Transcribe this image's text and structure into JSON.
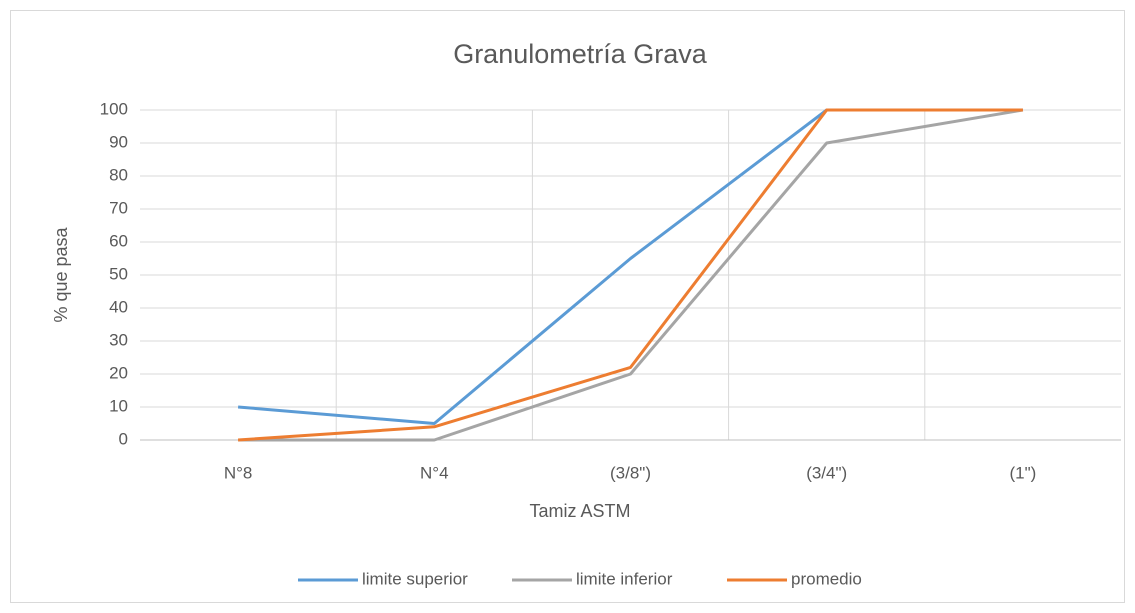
{
  "chart_data": {
    "type": "line",
    "title": "Granulometría  Grava",
    "x_label": "Tamiz ASTM",
    "y_label": "% que pasa",
    "categories": [
      "N°8",
      "N°4",
      "(3/8\")",
      "(3/4\")",
      "(1\")"
    ],
    "series": [
      {
        "name": "limite superior",
        "color": "#5b9bd5",
        "values": [
          10,
          5,
          55,
          100,
          100
        ]
      },
      {
        "name": "limite inferior",
        "color": "#a5a5a5",
        "values": [
          0,
          0,
          20,
          90,
          100
        ]
      },
      {
        "name": "promedio",
        "color": "#ed7d31",
        "values": [
          0,
          4,
          22,
          100,
          100
        ]
      }
    ],
    "ylim": [
      0,
      100
    ],
    "yticks": [
      0,
      10,
      20,
      30,
      40,
      50,
      60,
      70,
      80,
      90,
      100
    ],
    "grid": true,
    "legend": "bottom"
  }
}
